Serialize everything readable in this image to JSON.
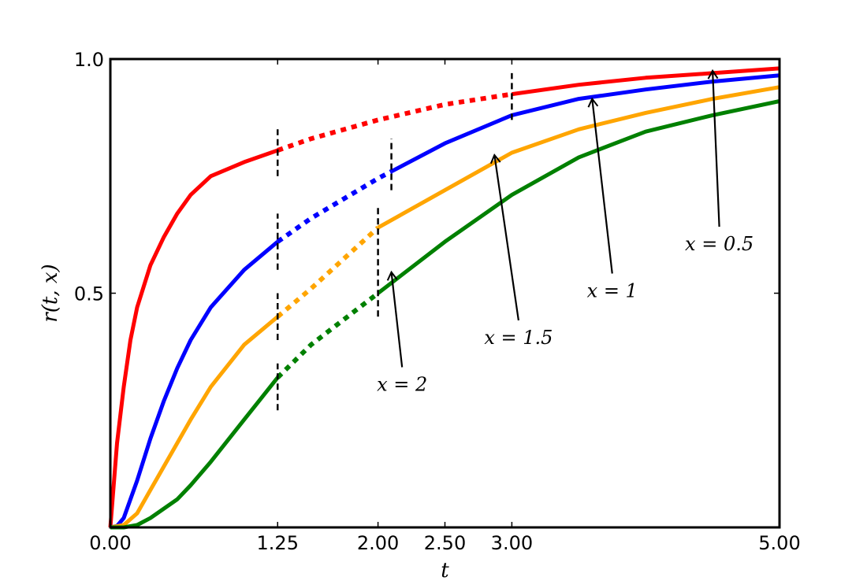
{
  "chart_data": {
    "type": "line",
    "title": "",
    "xlabel": "t",
    "ylabel": "r(t, x)",
    "xlim": [
      0,
      5
    ],
    "ylim": [
      0,
      1
    ],
    "grid": false,
    "x_ticks": [
      {
        "value": 0,
        "label": "0.00"
      },
      {
        "value": 1.25,
        "label": "1.25"
      },
      {
        "value": 2,
        "label": "2.00"
      },
      {
        "value": 2.5,
        "label": "2.50"
      },
      {
        "value": 3,
        "label": "3.00"
      },
      {
        "value": 5,
        "label": "5.00"
      }
    ],
    "y_ticks": [
      {
        "value": 0.5,
        "label": "0.5"
      },
      {
        "value": 1,
        "label": "1.0"
      }
    ],
    "series": [
      {
        "x_param": 0.5,
        "color": "#ff0000",
        "dotted_range": [
          1.25,
          3.0
        ],
        "x": [
          0,
          0.05,
          0.1,
          0.15,
          0.2,
          0.3,
          0.4,
          0.5,
          0.6,
          0.75,
          1.0,
          1.25,
          1.5,
          2.0,
          2.5,
          3.0,
          3.5,
          4.0,
          4.5,
          5.0
        ],
        "y": [
          0,
          0.18,
          0.3,
          0.4,
          0.47,
          0.56,
          0.62,
          0.67,
          0.71,
          0.75,
          0.78,
          0.805,
          0.83,
          0.87,
          0.903,
          0.925,
          0.945,
          0.96,
          0.97,
          0.98
        ]
      },
      {
        "x_param": 1,
        "color": "#0000ff",
        "dotted_range": [
          1.25,
          2.1
        ],
        "x": [
          0,
          0.05,
          0.1,
          0.2,
          0.3,
          0.4,
          0.5,
          0.6,
          0.75,
          1.0,
          1.25,
          1.5,
          2.0,
          2.1,
          2.5,
          3.0,
          3.5,
          4.0,
          4.5,
          5.0
        ],
        "y": [
          0,
          0.003,
          0.02,
          0.1,
          0.19,
          0.27,
          0.34,
          0.4,
          0.47,
          0.55,
          0.61,
          0.66,
          0.745,
          0.76,
          0.82,
          0.88,
          0.915,
          0.935,
          0.952,
          0.965
        ]
      },
      {
        "x_param": 1.5,
        "color": "#ffa500",
        "dotted_range": [
          1.25,
          2.0
        ],
        "x": [
          0,
          0.1,
          0.2,
          0.3,
          0.4,
          0.5,
          0.6,
          0.75,
          1.0,
          1.25,
          1.5,
          2.0,
          2.5,
          3.0,
          3.5,
          4.0,
          4.5,
          5.0
        ],
        "y": [
          0,
          0.005,
          0.03,
          0.08,
          0.13,
          0.18,
          0.23,
          0.3,
          0.39,
          0.45,
          0.51,
          0.64,
          0.72,
          0.8,
          0.85,
          0.885,
          0.915,
          0.94
        ]
      },
      {
        "x_param": 2,
        "color": "#008000",
        "dotted_range": [
          1.25,
          2.0
        ],
        "x": [
          0,
          0.1,
          0.2,
          0.3,
          0.4,
          0.5,
          0.6,
          0.75,
          1.0,
          1.25,
          1.5,
          2.0,
          2.5,
          3.0,
          3.5,
          4.0,
          4.5,
          5.0
        ],
        "y": [
          0,
          0.0,
          0.005,
          0.02,
          0.04,
          0.06,
          0.09,
          0.14,
          0.23,
          0.32,
          0.39,
          0.5,
          0.61,
          0.71,
          0.79,
          0.845,
          0.88,
          0.91
        ]
      }
    ],
    "dashed_markers": [
      {
        "x": 1.25,
        "y_from": 0.75,
        "y_to": 0.85
      },
      {
        "x": 1.25,
        "y_from": 0.55,
        "y_to": 0.67
      },
      {
        "x": 1.25,
        "y_from": 0.4,
        "y_to": 0.5
      },
      {
        "x": 1.25,
        "y_from": 0.25,
        "y_to": 0.35
      },
      {
        "x": 2.0,
        "y_from": 0.45,
        "y_to": 0.69
      },
      {
        "x": 2.1,
        "y_from": 0.72,
        "y_to": 0.83
      },
      {
        "x": 3.0,
        "y_from": 0.87,
        "y_to": 0.97
      }
    ],
    "annotations": [
      {
        "label": "x = 0.5",
        "text_x": 4.55,
        "text_y": 0.605,
        "arrow_to_x": 4.5,
        "arrow_to_y": 0.975
      },
      {
        "label": "x = 1",
        "text_x": 3.75,
        "text_y": 0.505,
        "arrow_to_x": 3.6,
        "arrow_to_y": 0.915
      },
      {
        "label": "x = 1.5",
        "text_x": 3.05,
        "text_y": 0.405,
        "arrow_to_x": 2.87,
        "arrow_to_y": 0.795
      },
      {
        "label": "x = 2",
        "text_x": 2.18,
        "text_y": 0.305,
        "arrow_to_x": 2.1,
        "arrow_to_y": 0.545
      }
    ]
  }
}
